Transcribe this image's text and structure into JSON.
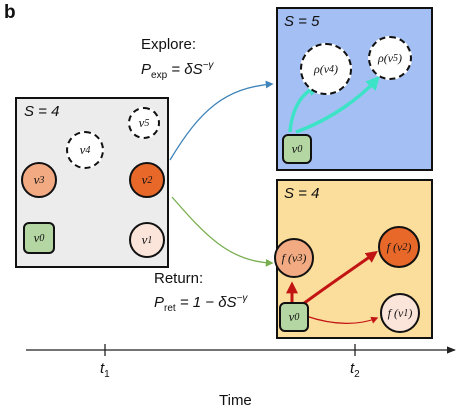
{
  "panel_letter": "b",
  "left_box": {
    "S_label": "S = 4"
  },
  "explore": {
    "title": "Explore:",
    "formula_prefix": "P",
    "formula_sub": "exp",
    "formula_body": " = δS",
    "formula_sup": "−γ"
  },
  "ret": {
    "title": "Return:",
    "formula_prefix": "P",
    "formula_sub": "ret",
    "formula_body": " = 1 − δS",
    "formula_sup": "−γ"
  },
  "top_box": {
    "S_label": "S = 5"
  },
  "bottom_box": {
    "S_label": "S = 4"
  },
  "nodes": {
    "v0": "ν",
    "v0_sub": "0",
    "v1": "ν",
    "v1_sub": "1",
    "v2": "ν",
    "v2_sub": "2",
    "v3": "ν",
    "v3_sub": "3",
    "v4": "ν",
    "v4_sub": "4",
    "v5": "ν",
    "v5_sub": "5"
  },
  "top_nodes": {
    "rho4": "ρ(ν",
    "rho4_sub": "4",
    "rho5": "ρ(ν",
    "rho5_sub": "5",
    "close": ")",
    "v0": "ν",
    "v0_sub": "0"
  },
  "bottom_nodes": {
    "f3": "f (ν",
    "f3_sub": "3",
    "f2": "f (ν",
    "f2_sub": "2",
    "f1": "f (ν",
    "f1_sub": "1",
    "close": ")",
    "v0": "ν",
    "v0_sub": "0"
  },
  "axis": {
    "t1": "t",
    "t1_sub": "1",
    "t2": "t",
    "t2_sub": "2",
    "title": "Time"
  },
  "colors": {
    "left_bg": "#ececec",
    "top_bg": "#a4bff3",
    "bottom_bg": "#fbdd9c",
    "green_node": "#b4d6a2",
    "orange_light": "#f2aa83",
    "orange_dark": "#e8682a",
    "pale": "#fbe5da",
    "cyan": "#3de3c7",
    "red": "#c31414",
    "blue_arrow": "#3f84b9",
    "green_arrow": "#79ae4f"
  }
}
